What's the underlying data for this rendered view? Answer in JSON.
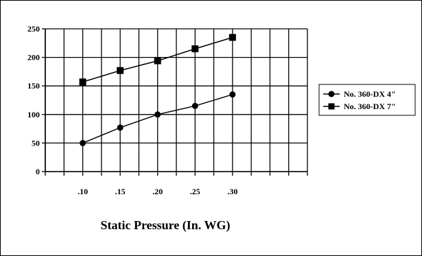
{
  "chart_data": {
    "type": "line",
    "title": "",
    "xlabel": "Static Pressure (In. WG)",
    "ylabel": "",
    "x_tick_labels": [
      ".10",
      ".15",
      ".20",
      ".25",
      ".30"
    ],
    "x_values": [
      0.1,
      0.15,
      0.2,
      0.25,
      0.3
    ],
    "xlim": [
      0.05,
      0.4
    ],
    "ylim": [
      0,
      250
    ],
    "y_ticks": [
      0,
      50,
      100,
      150,
      200,
      250
    ],
    "grid": true,
    "legend_position": "right",
    "series": [
      {
        "name": "No. 360-DX 4\"",
        "marker": "circle",
        "values": [
          50,
          77,
          100,
          115,
          135
        ]
      },
      {
        "name": "No. 360-DX 7\"",
        "marker": "square",
        "values": [
          157,
          177,
          194,
          215,
          235
        ]
      }
    ],
    "colors": {
      "line": "#000000",
      "grid": "#000000",
      "background": "#ffffff"
    }
  }
}
